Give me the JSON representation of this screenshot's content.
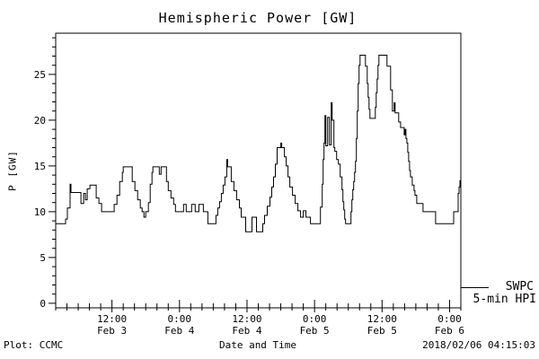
{
  "title": "Hemispheric Power [GW]",
  "footer": {
    "left": "Plot: CCMC",
    "center": "Date and Time",
    "right": "2018/02/06 04:15:03"
  },
  "legend": {
    "line1": "SWPC",
    "line2": "5-min HPI"
  },
  "colors": {
    "line": "#000000",
    "text": "#000000",
    "background": "#ffffff"
  },
  "chart_data": {
    "type": "line",
    "step": true,
    "title": "Hemispheric Power [GW]",
    "xlabel": "Date and Time",
    "ylabel": "P [GW]",
    "ylim": [
      -0.5,
      29.5
    ],
    "yticks": [
      0,
      5,
      10,
      15,
      20,
      25
    ],
    "y_minor_step": 1,
    "xlim_hours": [
      2,
      74
    ],
    "x_minor_step_hours": 2,
    "x_major_ticks": [
      {
        "hour": 12,
        "time": "12:00",
        "date": "Feb 3"
      },
      {
        "hour": 24,
        "time": "0:00",
        "date": "Feb 4"
      },
      {
        "hour": 36,
        "time": "12:00",
        "date": "Feb 4"
      },
      {
        "hour": 48,
        "time": "0:00",
        "date": "Feb 5"
      },
      {
        "hour": 60,
        "time": "12:00",
        "date": "Feb 5"
      },
      {
        "hour": 72,
        "time": "0:00",
        "date": "Feb 6"
      }
    ],
    "legend_entries": [
      "SWPC",
      "5-min HPI"
    ],
    "series": [
      {
        "name": "SWPC 5-min HPI",
        "units": "GW",
        "hours_from": "Feb 3 00:00",
        "points": [
          [
            2.0,
            8.7
          ],
          [
            3.76,
            9.2
          ],
          [
            4.08,
            10.4
          ],
          [
            4.56,
            13
          ],
          [
            4.72,
            12.1
          ],
          [
            6.48,
            10.9
          ],
          [
            6.96,
            12
          ],
          [
            7.28,
            11.3
          ],
          [
            7.6,
            12.5
          ],
          [
            8.08,
            12.9
          ],
          [
            9.2,
            11.5
          ],
          [
            9.68,
            10.9
          ],
          [
            10.16,
            10
          ],
          [
            12.4,
            10.8
          ],
          [
            12.88,
            11.8
          ],
          [
            13.36,
            13.3
          ],
          [
            13.84,
            14.3
          ],
          [
            14.0,
            14.9
          ],
          [
            15.6,
            13.3
          ],
          [
            16.08,
            12.3
          ],
          [
            16.56,
            11.3
          ],
          [
            17.04,
            10.4
          ],
          [
            17.36,
            10
          ],
          [
            17.68,
            9.4
          ],
          [
            18.0,
            10
          ],
          [
            18.48,
            11
          ],
          [
            18.8,
            13
          ],
          [
            19.12,
            14.3
          ],
          [
            19.28,
            14.9
          ],
          [
            20.4,
            14.1
          ],
          [
            20.72,
            14.9
          ],
          [
            21.68,
            13.3
          ],
          [
            22.0,
            12.3
          ],
          [
            22.48,
            11.5
          ],
          [
            22.96,
            10.8
          ],
          [
            23.28,
            10
          ],
          [
            24.72,
            10.8
          ],
          [
            25.2,
            10
          ],
          [
            26.16,
            10.8
          ],
          [
            26.8,
            10
          ],
          [
            27.44,
            10.8
          ],
          [
            28.24,
            10
          ],
          [
            29.04,
            8.7
          ],
          [
            30.48,
            9.6
          ],
          [
            30.8,
            10.4
          ],
          [
            31.12,
            11.1
          ],
          [
            31.44,
            12
          ],
          [
            31.76,
            12.9
          ],
          [
            32.08,
            13.8
          ],
          [
            32.4,
            15.7
          ],
          [
            32.56,
            14.9
          ],
          [
            33.2,
            13.3
          ],
          [
            33.68,
            12.3
          ],
          [
            34.16,
            11.3
          ],
          [
            34.64,
            10.4
          ],
          [
            34.96,
            9.4
          ],
          [
            35.76,
            7.8
          ],
          [
            36.88,
            9.4
          ],
          [
            37.68,
            7.8
          ],
          [
            38.8,
            8.7
          ],
          [
            39.12,
            9.6
          ],
          [
            39.6,
            10.6
          ],
          [
            40.08,
            11.6
          ],
          [
            40.4,
            12.7
          ],
          [
            40.72,
            13.8
          ],
          [
            41.04,
            15.2
          ],
          [
            41.36,
            17
          ],
          [
            42.0,
            17.5
          ],
          [
            42.16,
            17
          ],
          [
            42.64,
            16
          ],
          [
            42.96,
            15
          ],
          [
            43.28,
            13.8
          ],
          [
            43.6,
            12.7
          ],
          [
            44.08,
            11.8
          ],
          [
            44.56,
            10.9
          ],
          [
            45.04,
            10.1
          ],
          [
            45.52,
            9.4
          ],
          [
            46.0,
            10.1
          ],
          [
            46.48,
            9.4
          ],
          [
            47.28,
            8.7
          ],
          [
            49.04,
            10.5
          ],
          [
            49.36,
            13
          ],
          [
            49.52,
            15.7
          ],
          [
            49.68,
            17.5
          ],
          [
            49.84,
            20.5
          ],
          [
            50.0,
            17.2
          ],
          [
            50.32,
            20.3
          ],
          [
            50.64,
            17.3
          ],
          [
            50.96,
            21.9
          ],
          [
            51.12,
            20
          ],
          [
            51.44,
            17
          ],
          [
            51.6,
            16.6
          ],
          [
            51.92,
            15.7
          ],
          [
            52.24,
            15.2
          ],
          [
            52.56,
            13.8
          ],
          [
            52.88,
            12.4
          ],
          [
            53.04,
            11.1
          ],
          [
            53.2,
            10.2
          ],
          [
            53.36,
            9.2
          ],
          [
            53.52,
            8.7
          ],
          [
            54.48,
            10
          ],
          [
            54.64,
            11.3
          ],
          [
            54.8,
            12.4
          ],
          [
            54.96,
            13.3
          ],
          [
            55.12,
            14.3
          ],
          [
            55.28,
            15.5
          ],
          [
            55.44,
            18
          ],
          [
            55.6,
            21
          ],
          [
            55.76,
            24
          ],
          [
            55.92,
            26
          ],
          [
            56.08,
            27.1
          ],
          [
            57.04,
            25.9
          ],
          [
            57.36,
            24
          ],
          [
            57.52,
            22.5
          ],
          [
            57.68,
            21.2
          ],
          [
            57.84,
            20.2
          ],
          [
            58.8,
            21.4
          ],
          [
            58.96,
            23
          ],
          [
            59.12,
            24.5
          ],
          [
            59.28,
            26
          ],
          [
            59.44,
            27.1
          ],
          [
            60.88,
            25.9
          ],
          [
            61.52,
            23.3
          ],
          [
            61.84,
            21
          ],
          [
            62.16,
            21.9
          ],
          [
            62.32,
            20.8
          ],
          [
            62.96,
            19.8
          ],
          [
            63.28,
            19.2
          ],
          [
            63.92,
            18.4
          ],
          [
            64.08,
            19
          ],
          [
            64.24,
            18
          ],
          [
            64.4,
            17.5
          ],
          [
            64.56,
            16.5
          ],
          [
            64.72,
            15.5
          ],
          [
            64.88,
            14.5
          ],
          [
            65.04,
            13.8
          ],
          [
            65.36,
            12.9
          ],
          [
            65.68,
            12.3
          ],
          [
            65.84,
            11.8
          ],
          [
            66.16,
            10.9
          ],
          [
            67.28,
            10
          ],
          [
            69.52,
            8.7
          ],
          [
            72.72,
            10
          ],
          [
            73.52,
            12
          ],
          [
            73.68,
            12.7
          ],
          [
            73.84,
            13.4
          ],
          [
            74.0,
            14
          ]
        ]
      }
    ]
  }
}
